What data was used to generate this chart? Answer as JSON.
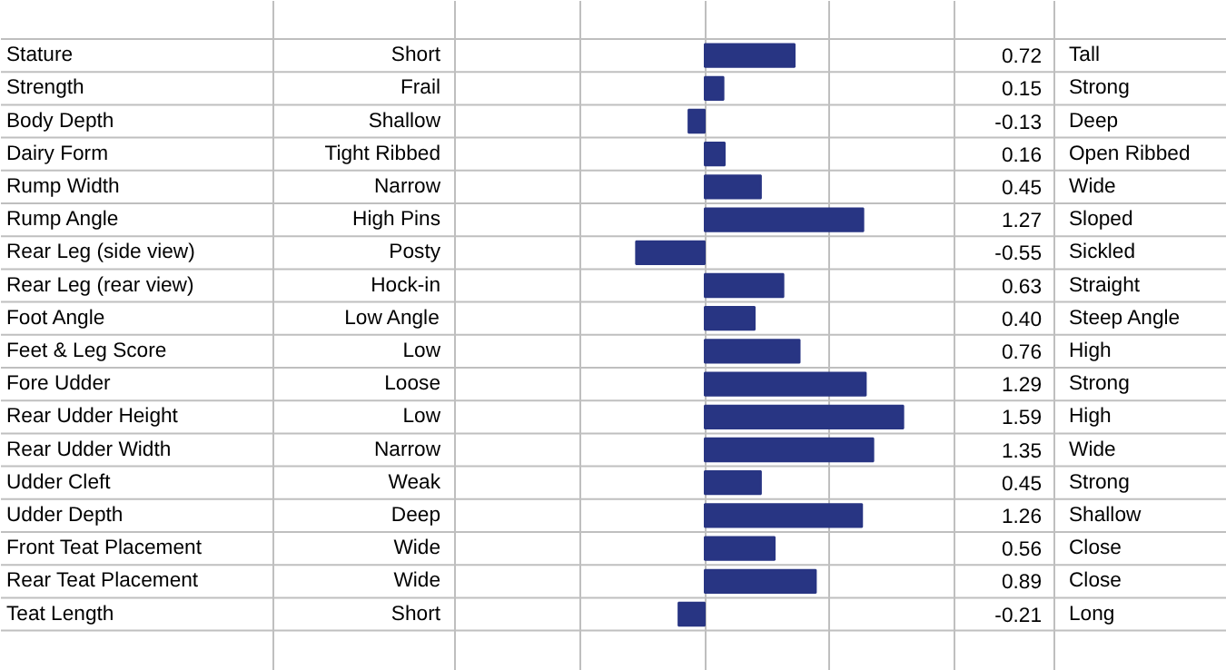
{
  "chart_data": {
    "type": "bar",
    "orientation": "horizontal",
    "categories": [
      "Stature",
      "Strength",
      "Body Depth",
      "Dairy Form",
      "Rump Width",
      "Rump Angle",
      "Rear Leg (side view)",
      "Rear Leg (rear view)",
      "Foot Angle",
      "Feet & Leg Score",
      "Fore Udder",
      "Rear Udder Height",
      "Rear Udder Width",
      "Udder Cleft",
      "Udder Depth",
      "Front Teat Placement",
      "Rear Teat Placement",
      "Teat Length"
    ],
    "values": [
      0.72,
      0.15,
      -0.13,
      0.16,
      0.45,
      1.27,
      -0.55,
      0.63,
      0.4,
      0.76,
      1.29,
      1.59,
      1.35,
      0.45,
      1.26,
      0.56,
      0.89,
      -0.21
    ],
    "value_labels": [
      "0.72",
      "0.15",
      "-0.13",
      "0.16",
      "0.45",
      "1.27",
      "-0.55",
      "0.63",
      "0.40",
      "0.76",
      "1.29",
      "1.59",
      "1.35",
      "0.45",
      "1.26",
      "0.56",
      "0.89",
      "-0.21"
    ],
    "color": "#283583",
    "xlim": [
      -2,
      2
    ],
    "xticks": [
      {
        "value": -2,
        "label": null
      },
      {
        "value": -1,
        "label": null
      },
      {
        "value": 0,
        "label": null
      },
      {
        "value": 1,
        "label": null
      },
      {
        "value": 2,
        "label": null
      }
    ],
    "grid": "x",
    "tick_labels": false,
    "annotations": [
      "Short",
      "Tall",
      "Frail",
      "Strong",
      "Shallow",
      "Deep",
      "Tight Ribbed",
      "Open Ribbed",
      "Narrow",
      "Wide",
      "High Pins",
      "Sloped",
      "Posty",
      "Sickled",
      "Hock-in",
      "Straight",
      "Low Angle",
      "Steep Angle",
      "Low",
      "High",
      "Loose",
      "Strong",
      "Low",
      "High",
      "Narrow",
      "Wide",
      "Weak",
      "Strong",
      "Deep",
      "Shallow",
      "Wide",
      "Close",
      "Wide",
      "Close",
      "Short",
      "Long"
    ]
  }
}
